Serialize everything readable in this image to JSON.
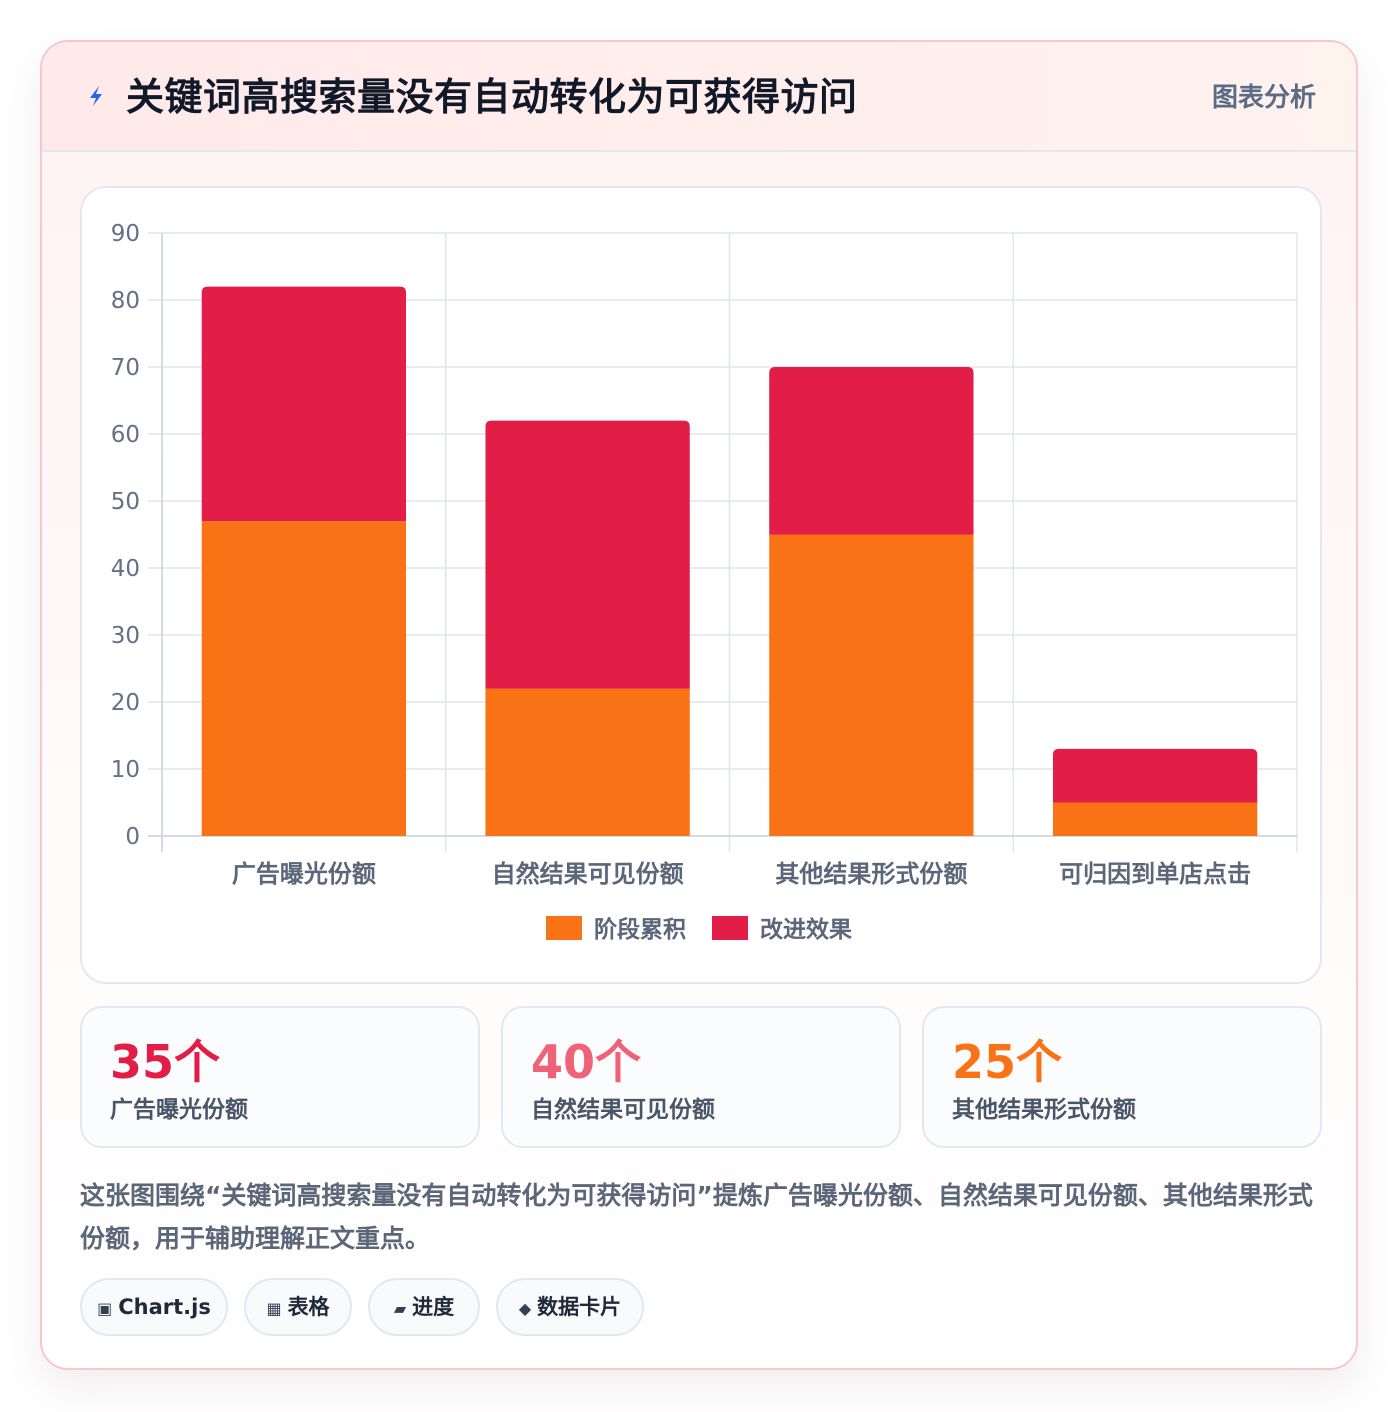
{
  "header": {
    "icon": "bolt-icon",
    "title": "关键词高搜索量没有自动转化为可获得访问",
    "tag": "图表分析"
  },
  "chart_data": {
    "type": "bar",
    "stacked": true,
    "categories": [
      "广告曝光份额",
      "自然结果可见份额",
      "其他结果形式份额",
      "可归因到单店点击"
    ],
    "series": [
      {
        "name": "阶段累积",
        "color": "#f97316",
        "values": [
          47,
          22,
          45,
          5
        ]
      },
      {
        "name": "改进效果",
        "color": "#e11d48",
        "values": [
          35,
          40,
          25,
          8
        ]
      }
    ],
    "ylim": [
      0,
      90
    ],
    "yticks": [
      0,
      10,
      20,
      30,
      40,
      50,
      60,
      70,
      80,
      90
    ],
    "grid": true,
    "legend_position": "bottom"
  },
  "stats": [
    {
      "value": "35个",
      "label": "广告曝光份额",
      "color": "#e11d48"
    },
    {
      "value": "40个",
      "label": "自然结果可见份额",
      "color": "#f06277"
    },
    {
      "value": "25个",
      "label": "其他结果形式份额",
      "color": "#f97316"
    }
  ],
  "description": "这张图围绕“关键词高搜索量没有自动转化为可获得访问”提炼广告曝光份额、自然结果可见份额、其他结果形式份额，用于辅助理解正文重点。",
  "chips": [
    {
      "icon": "chart-icon",
      "glyph": "▣",
      "label": "Chart.js"
    },
    {
      "icon": "table-icon",
      "glyph": "▦",
      "label": "表格"
    },
    {
      "icon": "progress-icon",
      "glyph": "▰",
      "label": "进度"
    },
    {
      "icon": "card-icon",
      "glyph": "◆",
      "label": "数据卡片"
    }
  ]
}
